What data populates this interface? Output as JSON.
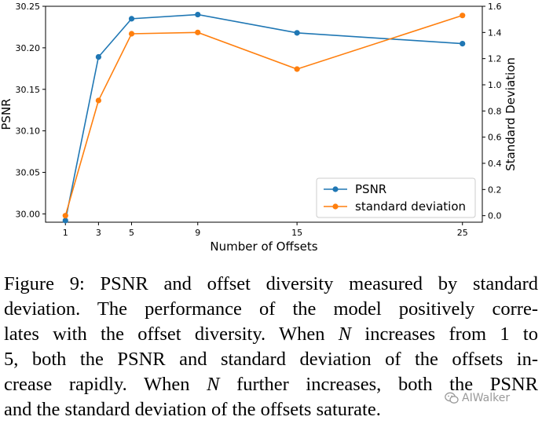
{
  "chart_data": {
    "type": "line",
    "x": [
      1,
      3,
      5,
      9,
      15,
      25
    ],
    "xticks": [
      "1",
      "3",
      "5",
      "9",
      "15",
      "25"
    ],
    "xlabel": "Number of Offsets",
    "ylabel_left": "PSNR",
    "ylabel_right": "Standard Deviation",
    "ylim_left": [
      29.99,
      30.25
    ],
    "yticks_left": [
      "30.00",
      "30.05",
      "30.10",
      "30.15",
      "30.20",
      "30.25"
    ],
    "ylim_right": [
      -0.05,
      1.6
    ],
    "yticks_right": [
      "0.0",
      "0.2",
      "0.4",
      "0.6",
      "0.8",
      "1.0",
      "1.2",
      "1.4",
      "1.6"
    ],
    "series": [
      {
        "name": "PSNR",
        "axis": "left",
        "color": "#1f77b4",
        "values": [
          29.992,
          30.189,
          30.235,
          30.24,
          30.218,
          30.205
        ]
      },
      {
        "name": "standard deviation",
        "axis": "right",
        "color": "#ff7f0e",
        "values": [
          0.0,
          0.88,
          1.39,
          1.4,
          1.12,
          1.53
        ]
      }
    ],
    "legend": "lower-right",
    "grid": false
  },
  "caption": {
    "lines": [
      [
        "Figure 9: PSNR and offset diversity measured by standard"
      ],
      [
        "deviation. The performance of the model positively corre-"
      ],
      [
        "lates with the offset diversity. When ",
        {
          "var": "N"
        },
        " increases from 1 to"
      ],
      [
        "5, both the PSNR and standard deviation of the offsets in-"
      ],
      [
        "crease rapidly. When ",
        {
          "var": "N"
        },
        " further increases, both the PSNR"
      ],
      [
        "and the standard deviation of the offsets saturate."
      ]
    ]
  },
  "watermark": {
    "text": "AIWalker",
    "icon": "wechat-icon"
  }
}
